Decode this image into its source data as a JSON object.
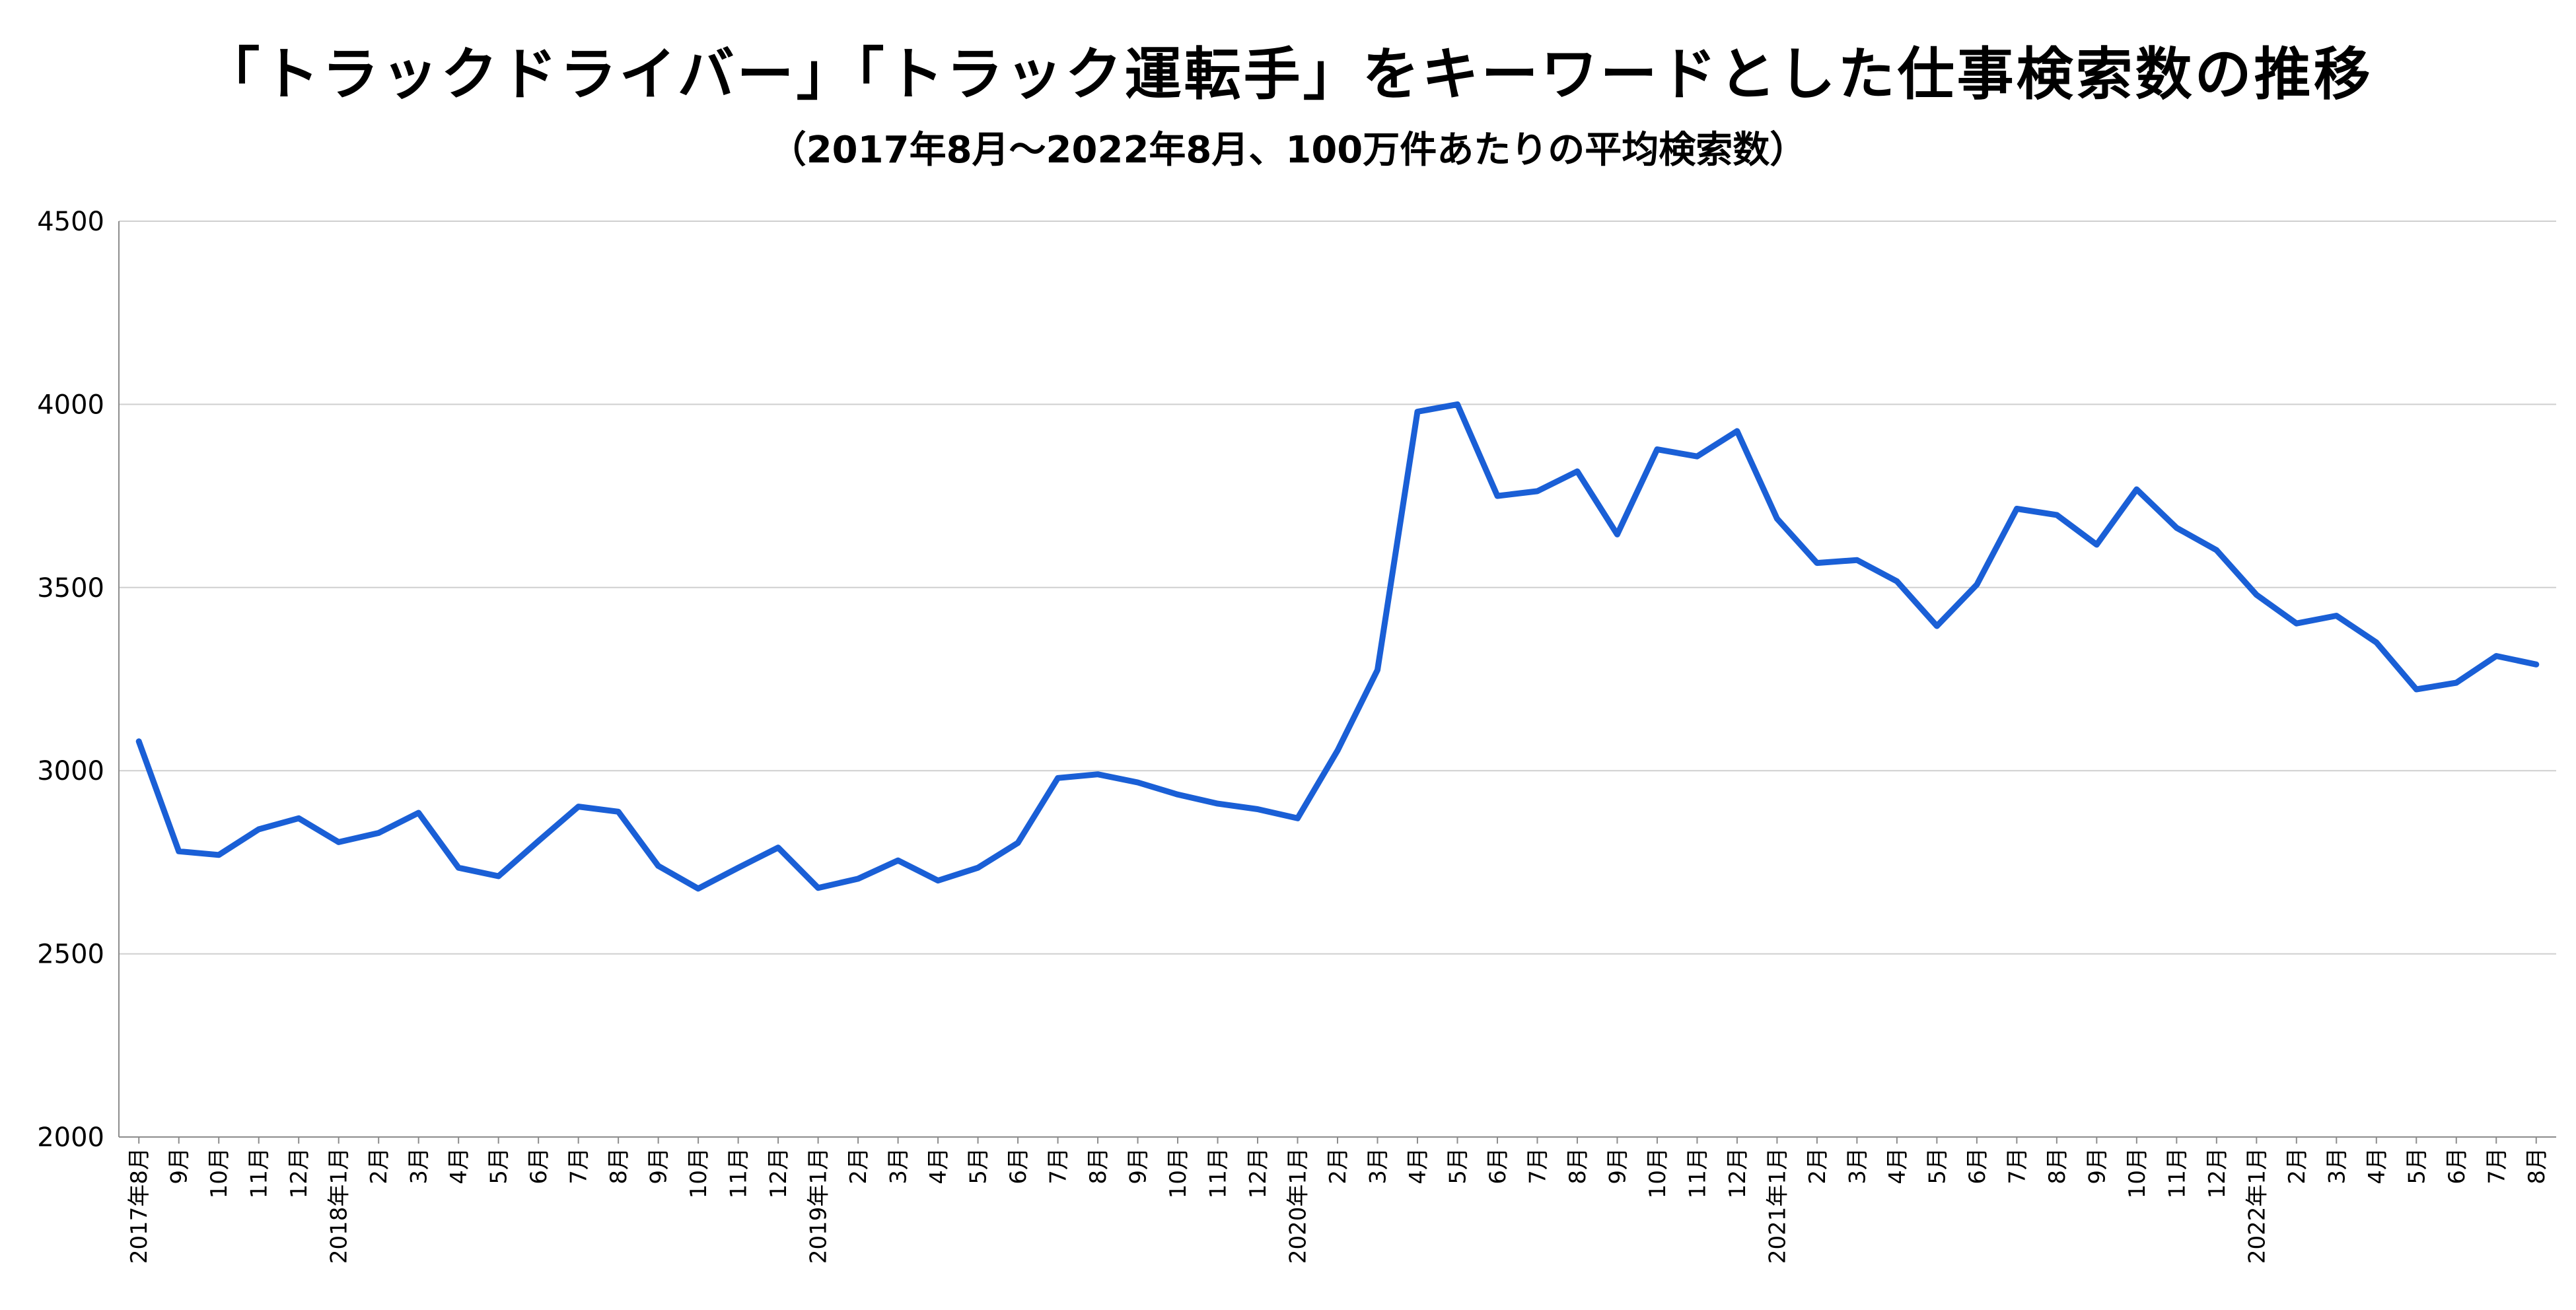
{
  "chart_data": {
    "type": "line",
    "title": "「トラックドライバー」「トラック運転手」をキーワードとした仕事検索数の推移",
    "subtitle": "（2017年8月～2022年8月、100万件あたりの平均検索数）",
    "xlabel": "",
    "ylabel": "",
    "ylim": [
      2000,
      4500
    ],
    "yticks": [
      "2000",
      "2500",
      "3000",
      "3500",
      "4000",
      "4500"
    ],
    "grid": true,
    "legend": "none",
    "line_color": "#1a5fd6",
    "categories": [
      "2017年8月",
      "9月",
      "10月",
      "11月",
      "12月",
      "2018年1月",
      "2月",
      "3月",
      "4月",
      "5月",
      "6月",
      "7月",
      "8月",
      "9月",
      "10月",
      "11月",
      "12月",
      "2019年1月",
      "2月",
      "3月",
      "4月",
      "5月",
      "6月",
      "7月",
      "8月",
      "9月",
      "10月",
      "11月",
      "12月",
      "2020年1月",
      "2月",
      "3月",
      "4月",
      "5月",
      "6月",
      "7月",
      "8月",
      "9月",
      "10月",
      "11月",
      "12月",
      "2021年1月",
      "2月",
      "3月",
      "4月",
      "5月",
      "6月",
      "7月",
      "8月",
      "9月",
      "10月",
      "11月",
      "12月",
      "2022年1月",
      "2月",
      "3月",
      "4月",
      "5月",
      "6月",
      "7月",
      "8月"
    ],
    "series": [
      {
        "values": [
          3080,
          2780,
          2770,
          2840,
          2870,
          2805,
          2830,
          2885,
          2735,
          2712,
          2808,
          2902,
          2888,
          2740,
          2678,
          2735,
          2790,
          2680,
          2705,
          2755,
          2700,
          2735,
          2803,
          2980,
          2990,
          2968,
          2935,
          2910,
          2895,
          2870,
          3055,
          3275,
          3980,
          4000,
          3750,
          3763,
          3817,
          3645,
          3877,
          3858,
          3927,
          3688,
          3567,
          3575,
          3517,
          3395,
          3508,
          3715,
          3698,
          3617,
          3768,
          3663,
          3602,
          3480,
          3402,
          3423,
          3350,
          3222,
          3240,
          3313,
          3290
        ]
      }
    ]
  }
}
